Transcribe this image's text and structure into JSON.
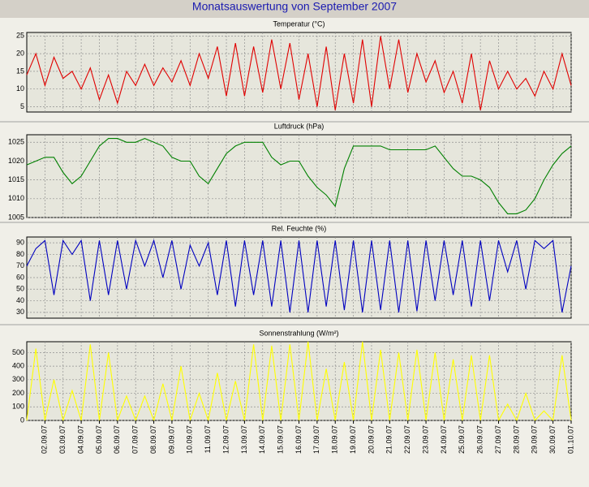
{
  "title": "Monatsauswertung von September 2007",
  "chart_data": [
    {
      "type": "line",
      "title": "Temperatur (°C)",
      "color": "#e00000",
      "grid": true,
      "ylim": [
        3.5,
        26
      ],
      "yticks": [
        5,
        10,
        15,
        20,
        25
      ],
      "values": [
        14,
        20,
        11,
        19,
        13,
        15,
        10,
        16,
        7,
        14,
        6,
        15,
        11,
        17,
        11,
        16,
        12,
        18,
        11,
        20,
        13,
        22,
        8,
        23,
        8,
        22,
        9,
        24,
        10,
        23,
        7,
        20,
        5,
        22,
        4,
        20,
        6,
        24,
        5,
        25,
        10,
        24,
        9,
        20,
        12,
        18,
        9,
        15,
        6,
        20,
        4,
        18,
        10,
        15,
        10,
        13,
        8,
        15,
        10,
        20,
        11
      ]
    },
    {
      "type": "line",
      "title": "Luftdruck (hPa)",
      "color": "#008000",
      "grid": true,
      "ylim": [
        1005,
        1027
      ],
      "yticks": [
        1005,
        1010,
        1015,
        1020,
        1025
      ],
      "values": [
        1019,
        1020,
        1021,
        1021,
        1017,
        1014,
        1016,
        1020,
        1024,
        1026,
        1026,
        1025,
        1025,
        1026,
        1025,
        1024,
        1021,
        1020,
        1020,
        1016,
        1014,
        1018,
        1022,
        1024,
        1025,
        1025,
        1025,
        1021,
        1019,
        1020,
        1020,
        1016,
        1013,
        1011,
        1008,
        1018,
        1024,
        1024,
        1024,
        1024,
        1023,
        1023,
        1023,
        1023,
        1023,
        1024,
        1021,
        1018,
        1016,
        1016,
        1015,
        1013,
        1009,
        1006,
        1006,
        1007,
        1010,
        1015,
        1019,
        1022,
        1024
      ]
    },
    {
      "type": "line",
      "title": "Rel. Feuchte (%)",
      "color": "#0000c0",
      "grid": true,
      "ylim": [
        25,
        95
      ],
      "yticks": [
        30,
        40,
        50,
        60,
        70,
        80,
        90
      ],
      "values": [
        70,
        85,
        92,
        45,
        92,
        80,
        92,
        40,
        92,
        45,
        92,
        50,
        92,
        70,
        92,
        60,
        92,
        50,
        88,
        70,
        90,
        45,
        92,
        35,
        92,
        45,
        92,
        35,
        92,
        30,
        92,
        30,
        92,
        35,
        92,
        32,
        92,
        30,
        92,
        32,
        92,
        30,
        92,
        31,
        92,
        40,
        92,
        45,
        92,
        35,
        92,
        40,
        92,
        65,
        92,
        50,
        92,
        85,
        92,
        30,
        70
      ]
    },
    {
      "type": "line",
      "title": "Sonnenstrahlung (W/m²)",
      "color": "#ffff00",
      "grid": true,
      "ylim": [
        0,
        580
      ],
      "yticks": [
        0,
        100,
        200,
        300,
        400,
        500
      ],
      "values": [
        0,
        530,
        0,
        300,
        0,
        220,
        0,
        560,
        0,
        500,
        0,
        180,
        0,
        180,
        0,
        270,
        0,
        400,
        0,
        200,
        0,
        350,
        0,
        290,
        0,
        560,
        0,
        550,
        0,
        560,
        0,
        580,
        0,
        380,
        0,
        430,
        0,
        580,
        0,
        520,
        0,
        500,
        0,
        520,
        0,
        500,
        0,
        450,
        0,
        480,
        0,
        480,
        0,
        120,
        0,
        200,
        0,
        70,
        0,
        480,
        0
      ],
      "categories": [
        null,
        null,
        "02.09.07",
        null,
        "03.09.07",
        null,
        "04.09.07",
        null,
        "05.09.07",
        null,
        "06.09.07",
        null,
        "07.09.07",
        null,
        "08.09.07",
        null,
        "09.09.07",
        null,
        "10.09.07",
        null,
        "11.09.07",
        null,
        "12.09.07",
        null,
        "13.09.07",
        null,
        "14.09.07",
        null,
        "15.09.07",
        null,
        "16.09.07",
        null,
        "17.09.07",
        null,
        "18.09.07",
        null,
        "19.09.07",
        null,
        "20.09.07",
        null,
        "21.09.07",
        null,
        "22.09.07",
        null,
        "23.09.07",
        null,
        "24.09.07",
        null,
        "25.09.07",
        null,
        "26.09.07",
        null,
        "27.09.07",
        null,
        "28.09.07",
        null,
        "29.09.07",
        null,
        "30.09.07",
        null,
        "01.10.07"
      ]
    }
  ]
}
